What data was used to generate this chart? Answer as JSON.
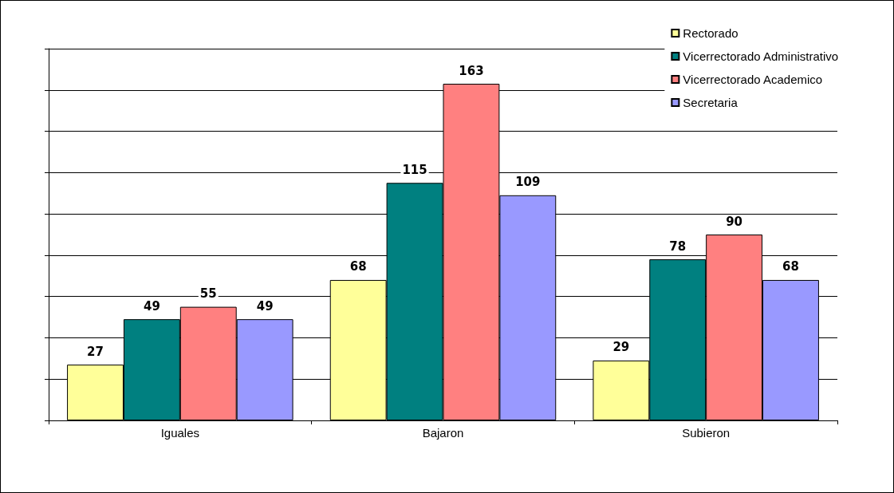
{
  "chart_data": {
    "type": "bar",
    "categories": [
      "Iguales",
      "Bajaron",
      "Subieron"
    ],
    "series": [
      {
        "name": "Rectorado",
        "color": "#ffff99",
        "values": [
          27,
          68,
          29
        ]
      },
      {
        "name": "Vicerrectorado Administrativo",
        "color": "#008080",
        "values": [
          49,
          115,
          78
        ]
      },
      {
        "name": "Vicerrectorado Academico",
        "color": "#ff8080",
        "values": [
          55,
          163,
          90
        ]
      },
      {
        "name": "Secretaria",
        "color": "#9999ff",
        "values": [
          49,
          109,
          68
        ]
      }
    ],
    "ylim": [
      0,
      180
    ],
    "yticks": [
      {
        "value": 0,
        "label": null
      },
      {
        "value": 20,
        "label": null
      },
      {
        "value": 40,
        "label": null
      },
      {
        "value": 60,
        "label": null
      },
      {
        "value": 80,
        "label": null
      },
      {
        "value": 100,
        "label": null
      },
      {
        "value": 120,
        "label": null
      },
      {
        "value": 140,
        "label": null
      },
      {
        "value": 160,
        "label": null
      },
      {
        "value": 180,
        "label": null
      }
    ],
    "tick_labels": "x",
    "grid": "y",
    "legend": "top right",
    "data_labels": true
  }
}
